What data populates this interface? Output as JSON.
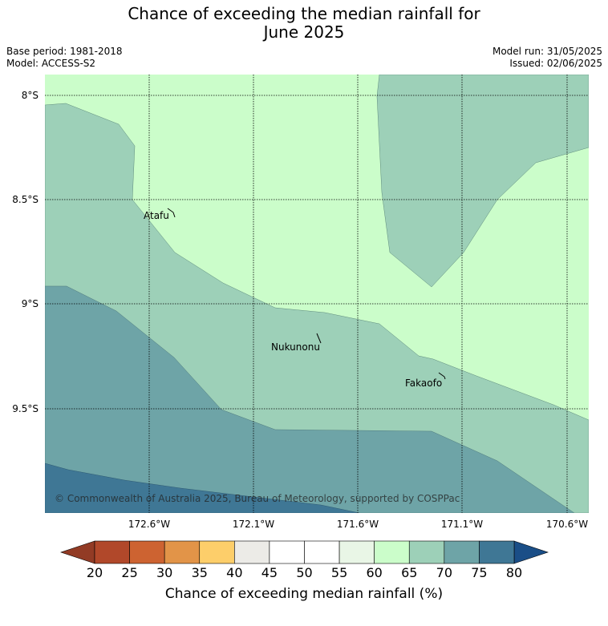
{
  "title": {
    "line1": "Chance of exceeding the median rainfall for",
    "line2": "June 2025"
  },
  "meta": {
    "base_period": "Base period: 1981-2018",
    "model": "Model: ACCESS-S2",
    "model_run": "Model run: 31/05/2025",
    "issued": "Issued: 02/06/2025"
  },
  "map": {
    "lat_labels": [
      "8°S",
      "8.5°S",
      "9°S",
      "9.5°S"
    ],
    "lon_labels": [
      "172.6°W",
      "172.1°W",
      "171.6°W",
      "171.1°W",
      "170.6°W"
    ],
    "places": [
      "Atafu",
      "Nukunonu",
      "Fakaofo"
    ],
    "copyright": "© Commonwealth of Australia 2025, Bureau of Meteorology, supported by COSPPac"
  },
  "colorbar": {
    "ticks": [
      "20",
      "25",
      "30",
      "35",
      "40",
      "45",
      "50",
      "55",
      "60",
      "65",
      "70",
      "75",
      "80"
    ],
    "colors": [
      "#b1482a",
      "#cd6331",
      "#e29448",
      "#fdce6a",
      "#ecebe7",
      "#ffffff",
      "#ffffff",
      "#e9f6e6",
      "#cbfdca",
      "#9dd0b8",
      "#6ea4a7",
      "#3f7795"
    ],
    "under_color": "#923b25",
    "over_color": "#1a4e87",
    "label": "Chance of exceeding median rainfall (%)"
  }
}
